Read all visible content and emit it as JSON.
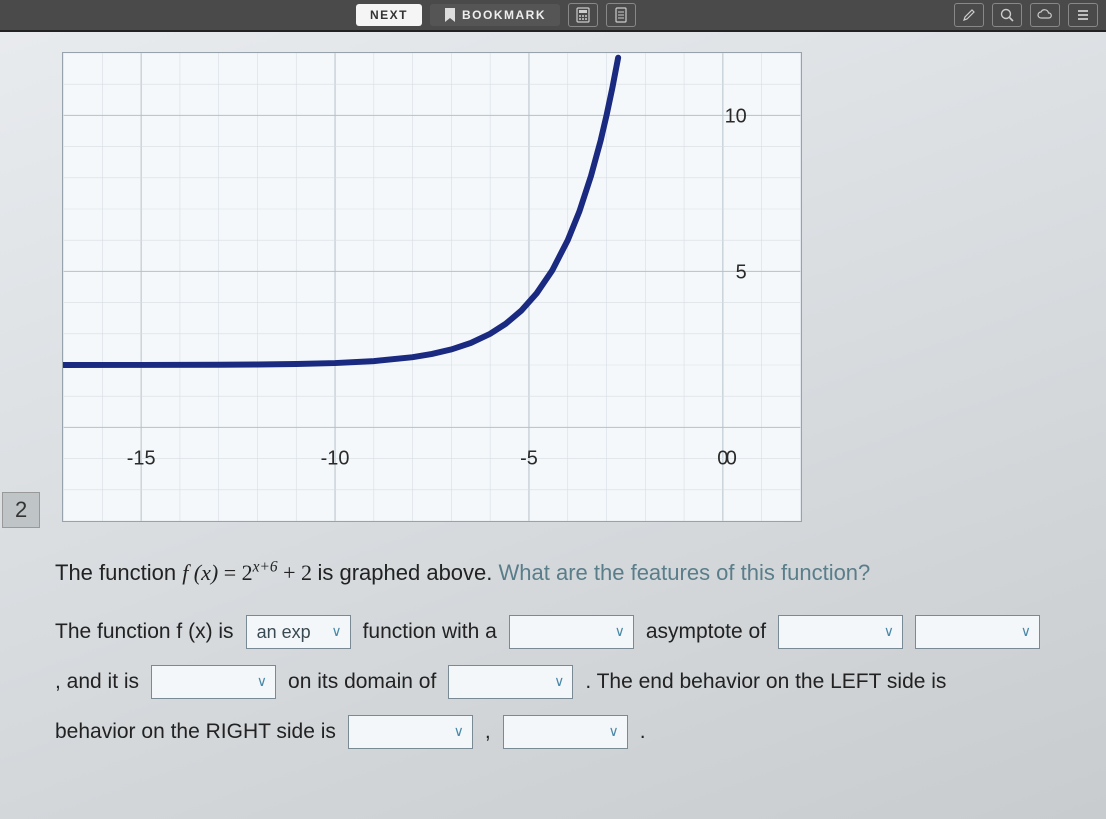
{
  "toolbar": {
    "next_label": "NEXT",
    "bookmark_label": "BOOKMARK"
  },
  "question_number": "2",
  "chart": {
    "type": "line",
    "background_color": "#f5f8fa",
    "grid_color": "#b5c0ca",
    "subgrid_color": "#d6dde4",
    "curve_color": "#1a2a80",
    "curve_width": 6,
    "xlim": [
      -17,
      2
    ],
    "ylim": [
      -3,
      12
    ],
    "x_ticks": [
      -15,
      -10,
      -5,
      0
    ],
    "y_ticks": [
      5,
      10
    ],
    "function": "2^(x+6)+2",
    "points": [
      [
        -17,
        2.0005
      ],
      [
        -15,
        2.002
      ],
      [
        -13,
        2.008
      ],
      [
        -12,
        2.016
      ],
      [
        -11,
        2.031
      ],
      [
        -10,
        2.0625
      ],
      [
        -9,
        2.125
      ],
      [
        -8,
        2.25
      ],
      [
        -7.5,
        2.354
      ],
      [
        -7,
        2.5
      ],
      [
        -6.5,
        2.707
      ],
      [
        -6,
        3.0
      ],
      [
        -5.6,
        3.32
      ],
      [
        -5.2,
        3.74
      ],
      [
        -4.8,
        4.3
      ],
      [
        -4.4,
        5.03
      ],
      [
        -4,
        6.0
      ],
      [
        -3.7,
        6.92
      ],
      [
        -3.4,
        8.06
      ],
      [
        -3.15,
        9.2
      ],
      [
        -3.0,
        10.0
      ],
      [
        -2.85,
        10.88
      ],
      [
        -2.7,
        11.85
      ]
    ],
    "label_fontsize": 20
  },
  "prompt": {
    "line1_a": "The function ",
    "fx": "f (x)",
    "eq": " = ",
    "base": "2",
    "exp": "x+6",
    "plus": " + 2",
    "line1_b": " is graphed above. ",
    "line1_muted": "What are the features of this function?"
  },
  "fill": {
    "t1": "The function f (x) is",
    "d1": "an exp",
    "t2": "function with a",
    "d2": "",
    "t3": "asymptote of",
    "d3": "",
    "d4": "",
    "t4": ", and it is",
    "d5": "",
    "t5": "on its domain of",
    "d6": "",
    "t6": ".  The end behavior on the LEFT side is",
    "t7": "behavior on the RIGHT side is",
    "d7": "",
    "comma": ",",
    "d8": "",
    "period": "."
  }
}
